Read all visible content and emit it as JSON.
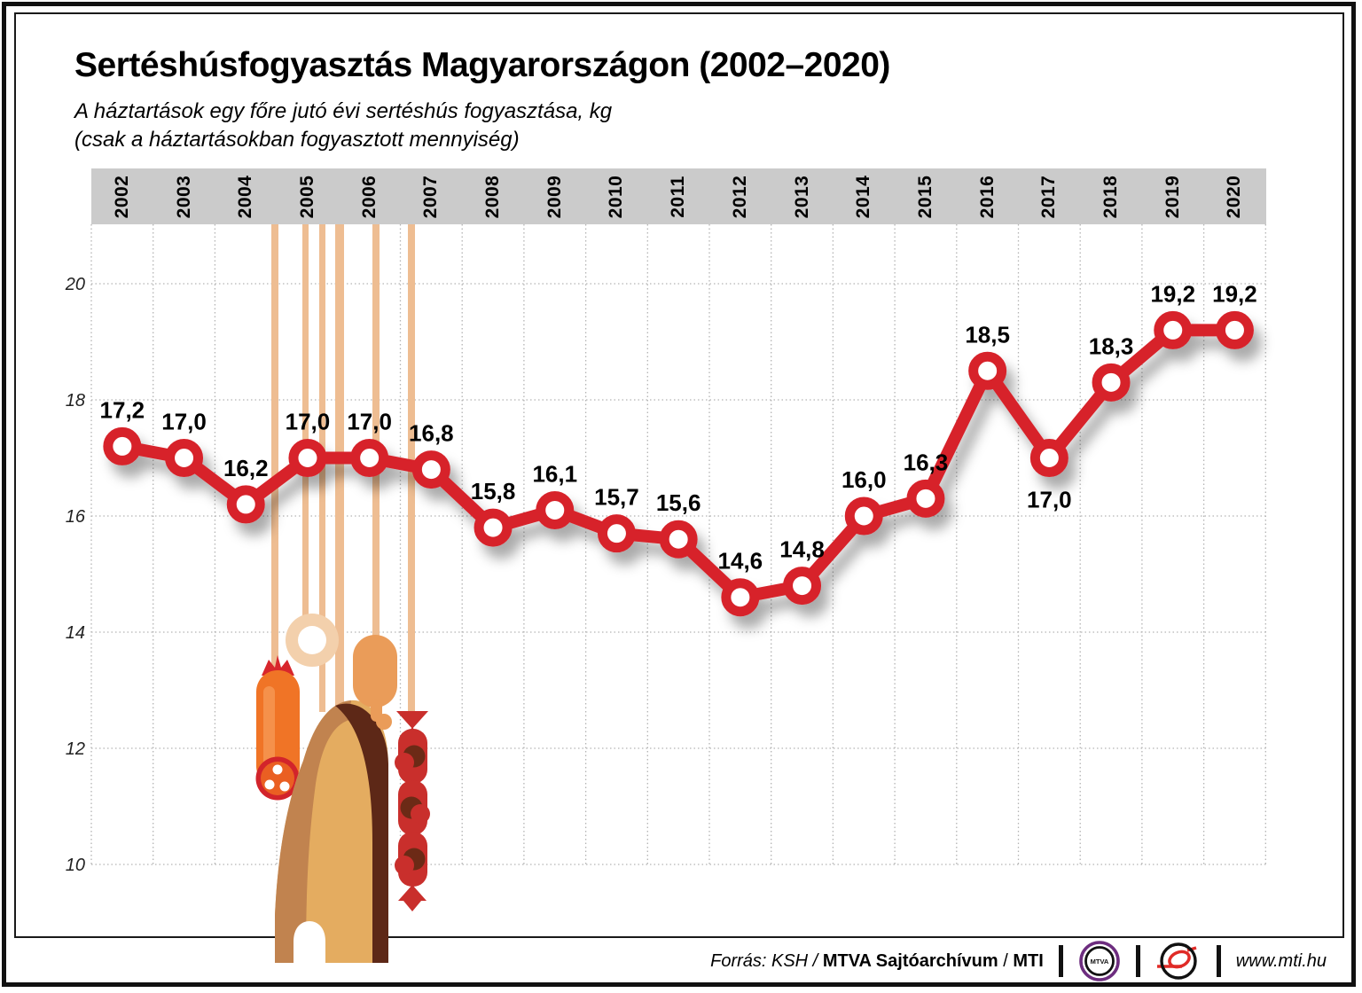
{
  "page": {
    "title": "Sertéshúsfogyasztás Magyarországon (2002–2020)",
    "subtitle_line1": "A háztartások egy főre jutó évi sertéshús fogyasztása, kg",
    "subtitle_line2": "(csak a háztartásokban fogyasztott mennyiség)"
  },
  "chart_data": {
    "type": "line",
    "title": "Sertéshúsfogyasztás Magyarországon (2002–2020)",
    "subtitle": "A háztartások egy főre jutó évi sertéshús fogyasztása, kg (csak a háztartásokban fogyasztott mennyiség)",
    "categories": [
      "2002",
      "2003",
      "2004",
      "2005",
      "2006",
      "2007",
      "2008",
      "2009",
      "2010",
      "2011",
      "2012",
      "2013",
      "2014",
      "2015",
      "2016",
      "2017",
      "2018",
      "2019",
      "2020"
    ],
    "values": [
      17.2,
      17.0,
      16.2,
      17.0,
      17.0,
      16.8,
      15.8,
      16.1,
      15.7,
      15.6,
      14.6,
      14.8,
      16.0,
      16.3,
      18.5,
      17.0,
      18.3,
      19.2,
      19.2
    ],
    "point_labels": [
      "17,2",
      "17,0",
      "16,2",
      "17,0",
      "17,0",
      "16,8",
      "15,8",
      "16,1",
      "15,7",
      "15,6",
      "14,6",
      "14,8",
      "16,0",
      "16,3",
      "18,5",
      "17,0",
      "18,3",
      "19,2",
      "19,2"
    ],
    "label_below_categories": [
      "2017"
    ],
    "ylabel": "kg",
    "yticks": [
      20,
      18,
      16,
      14,
      12,
      10
    ],
    "ylim": [
      10,
      21
    ],
    "grid": "dotted",
    "legend": "none",
    "marker": "open-circle"
  },
  "colors": {
    "line_red": "#d7232b",
    "band_gray": "#cbcbcb",
    "grid_gray": "#b3b3b3",
    "string_tan": "#eebd92",
    "mtva_purple": "#6d2d7f",
    "mti_red": "#e02b27"
  },
  "footer": {
    "source_italic": "Forrás: KSH /",
    "source_bold": "MTVA Sajtóarchívum",
    "source_sep": "/",
    "source_bold2": "MTI",
    "mtva_logo_text": "MTVA",
    "website": "www.mti.hu"
  }
}
